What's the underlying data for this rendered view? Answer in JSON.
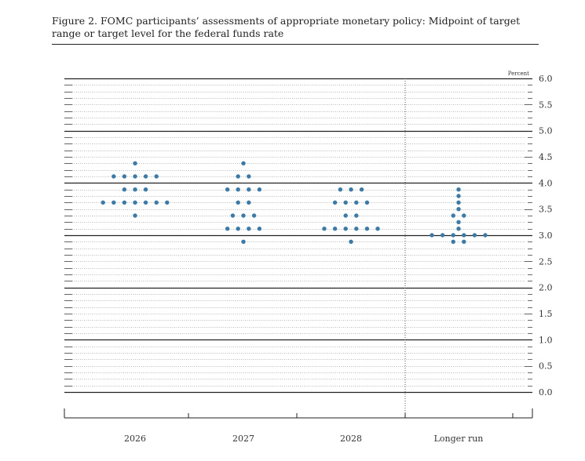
{
  "caption": "Figure 2.  FOMC participants’ assessments of appropriate monetary policy:  Midpoint of target range or target level for the federal funds rate",
  "chart_data": {
    "type": "scatter",
    "unit_label": "Percent",
    "ylim": [
      0,
      6
    ],
    "y_ticks": [
      "0.0",
      "0.5",
      "1.0",
      "1.5",
      "2.0",
      "2.5",
      "3.0",
      "3.5",
      "4.0",
      "4.5",
      "5.0",
      "5.5",
      "6.0"
    ],
    "categories": [
      "2026",
      "2027",
      "2028",
      "Longer run"
    ],
    "grid": true,
    "legend": "none",
    "dot_color": "#3d7aa6",
    "series": [
      {
        "category": "2026",
        "points": [
          {
            "y": 3.375,
            "count": 1
          },
          {
            "y": 3.625,
            "count": 7
          },
          {
            "y": 3.875,
            "count": 3
          },
          {
            "y": 4.125,
            "count": 5
          },
          {
            "y": 4.375,
            "count": 1
          }
        ]
      },
      {
        "category": "2027",
        "points": [
          {
            "y": 2.875,
            "count": 1
          },
          {
            "y": 3.125,
            "count": 4
          },
          {
            "y": 3.375,
            "count": 3
          },
          {
            "y": 3.625,
            "count": 2
          },
          {
            "y": 3.875,
            "count": 4
          },
          {
            "y": 4.125,
            "count": 2
          },
          {
            "y": 4.375,
            "count": 1
          }
        ]
      },
      {
        "category": "2028",
        "points": [
          {
            "y": 2.875,
            "count": 1
          },
          {
            "y": 3.125,
            "count": 6
          },
          {
            "y": 3.375,
            "count": 2
          },
          {
            "y": 3.625,
            "count": 4
          },
          {
            "y": 3.875,
            "count": 3
          }
        ]
      },
      {
        "category": "Longer run",
        "points": [
          {
            "y": 2.875,
            "count": 2
          },
          {
            "y": 3.0,
            "count": 6
          },
          {
            "y": 3.125,
            "count": 1
          },
          {
            "y": 3.25,
            "count": 1
          },
          {
            "y": 3.375,
            "count": 2
          },
          {
            "y": 3.5,
            "count": 1
          },
          {
            "y": 3.625,
            "count": 1
          },
          {
            "y": 3.75,
            "count": 1
          },
          {
            "y": 3.875,
            "count": 1
          }
        ]
      }
    ]
  }
}
